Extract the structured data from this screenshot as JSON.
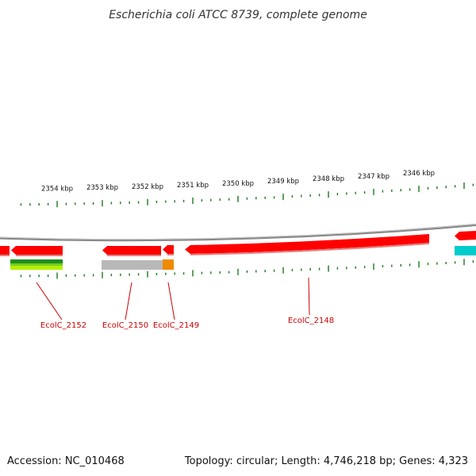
{
  "title": "Escherichia coli ATCC 8739, complete genome",
  "ruler": {
    "unit_suffix": " kbp",
    "labels": [
      2354,
      2353,
      2352,
      2351,
      2350,
      2349,
      2348,
      2347,
      2346
    ]
  },
  "genes": [
    {
      "id": "EcolC_2152",
      "labelled": true
    },
    {
      "id": "EcolC_2150",
      "labelled": true
    },
    {
      "id": "EcolC_2149",
      "labelled": true
    },
    {
      "id": "EcolC_2148",
      "labelled": true
    }
  ],
  "colors": {
    "gene_fill": "#ff0000",
    "gene_edge": "#e08080",
    "backbone": "#888888",
    "tick": "#1a7a1a",
    "label": "#cc0000",
    "cog_green_dark": "#1f8f1f",
    "cog_green_light": "#b5f000",
    "cog_gray": "#b8b8b8",
    "cog_orange": "#f08a00",
    "cog_cyan": "#00cccc"
  },
  "footer": {
    "accession": "Accession: NC_010468",
    "topology": "Topology: circular; Length: 4,746,218 bp; Genes: 4,323"
  }
}
